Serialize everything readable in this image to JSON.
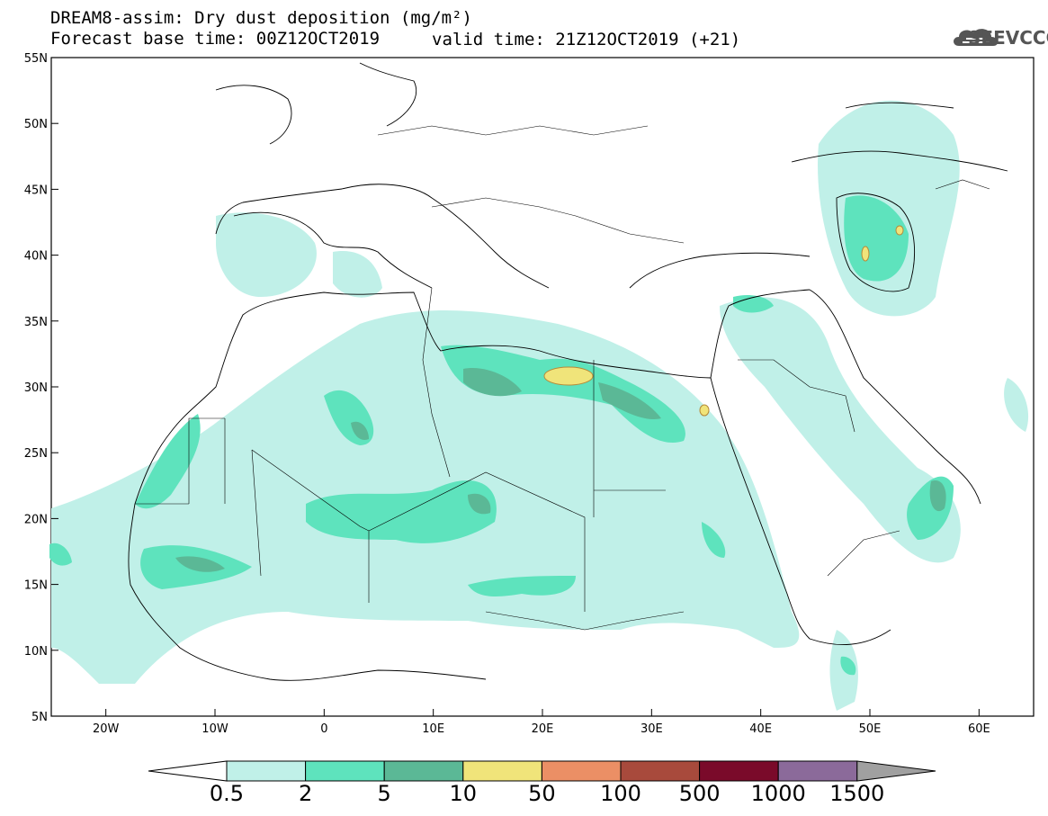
{
  "title": {
    "line1": "DREAM8-assim: Dry dust deposition (mg/m²)",
    "line2": "Forecast base time: 00Z12OCT2019",
    "line2_valid": "valid time: 21Z12OCT2019 (+21)"
  },
  "logo": {
    "text": "SEEVCCC",
    "icon": "cloud-icon"
  },
  "map": {
    "lon_range": [
      -25,
      65
    ],
    "lat_range": [
      5,
      55
    ],
    "lat_ticks": [
      "55N",
      "50N",
      "45N",
      "40N",
      "35N",
      "30N",
      "25N",
      "20N",
      "15N",
      "10N",
      "5N"
    ],
    "lon_ticks": [
      "20W",
      "10W",
      "0",
      "10E",
      "20E",
      "30E",
      "40E",
      "50E",
      "60E"
    ]
  },
  "colorbar": {
    "labels": [
      "0.5",
      "2",
      "5",
      "10",
      "50",
      "100",
      "500",
      "1000",
      "1500"
    ],
    "colors": [
      "#ffffff",
      "#c0f0e8",
      "#5ee3bd",
      "#5bb896",
      "#f0e47a",
      "#eb8f65",
      "#a84a3c",
      "#7a0a2a",
      "#8b6a9a",
      "#a0a0a0"
    ]
  }
}
